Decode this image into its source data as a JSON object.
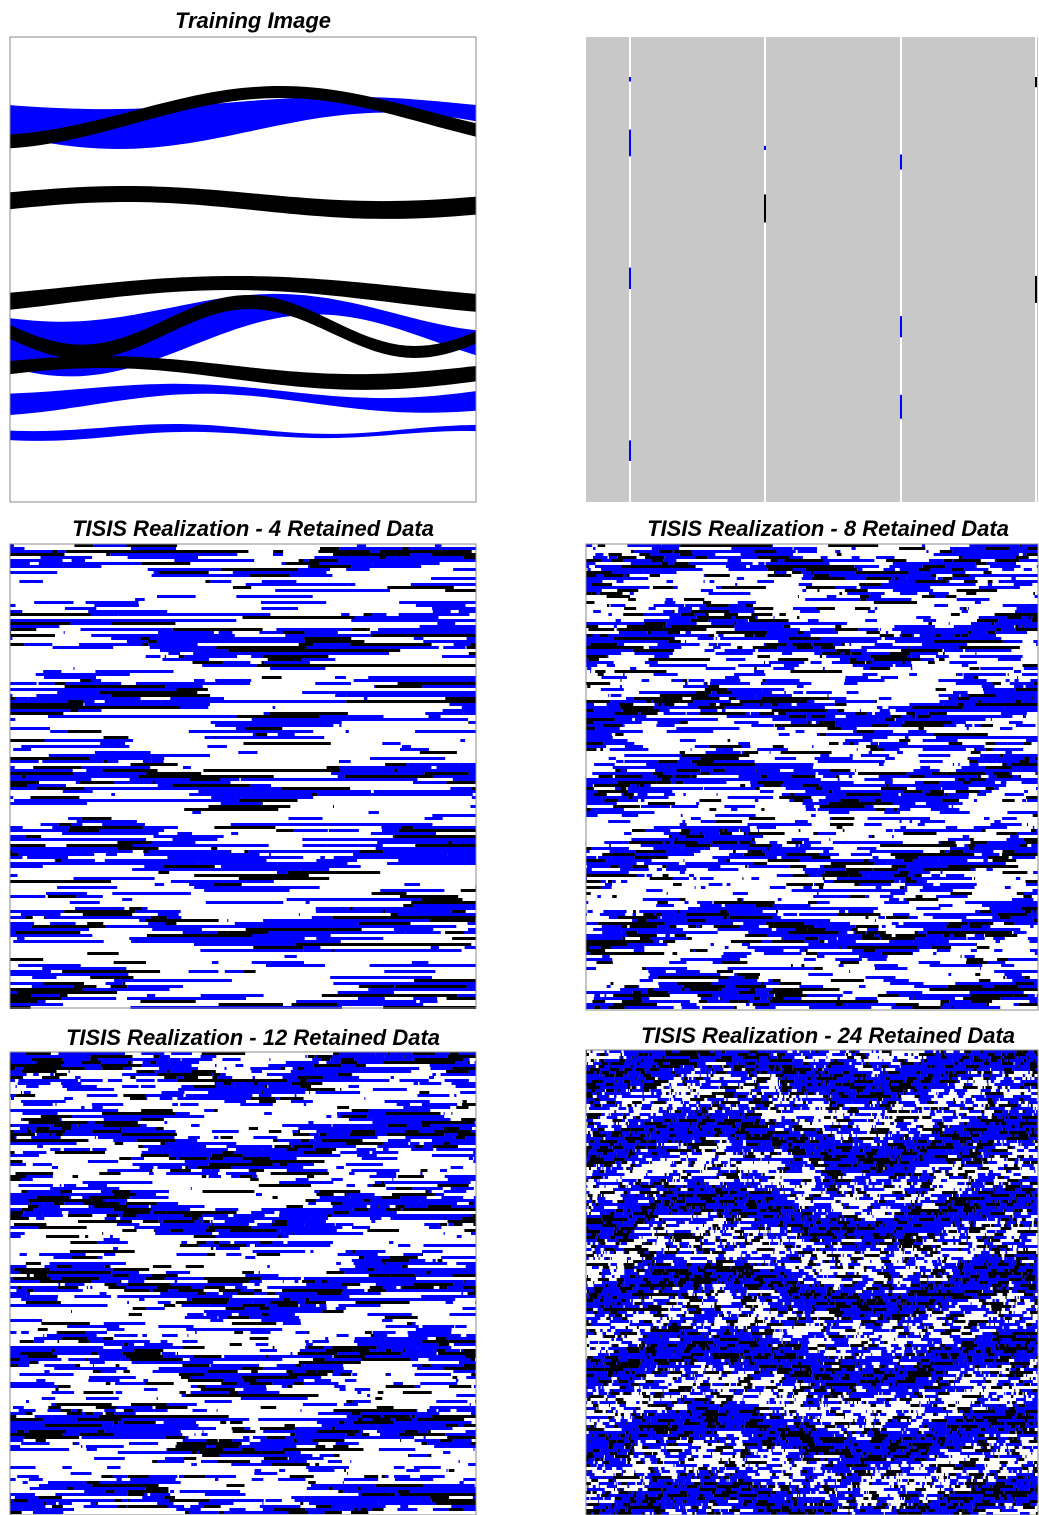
{
  "panels": [
    {
      "title": "Training Image"
    },
    {
      "title": "TISIS Realization - 4 Retained Data"
    },
    {
      "title": "TISIS Realization - 8 Retained Data"
    },
    {
      "title": "TISIS Realization - 12 Retained Data"
    },
    {
      "title": "TISIS Realization - 24 Retained Data"
    }
  ]
}
